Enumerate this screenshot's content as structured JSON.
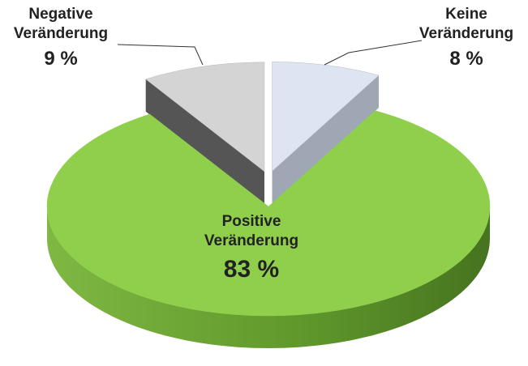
{
  "chart_data": {
    "type": "pie3d",
    "categories": [
      "Keine Veränderung",
      "Positive Veränderung",
      "Negative Veränderung"
    ],
    "values": [
      8,
      83,
      9
    ],
    "value_labels": [
      "8 %",
      "83 %",
      "9 %"
    ],
    "colors": [
      "#dce5f1",
      "#8fcf4c",
      "#d4d4d4"
    ],
    "side_colors": [
      "#9ea7b3",
      "#5f9a2c",
      "#555555"
    ]
  }
}
